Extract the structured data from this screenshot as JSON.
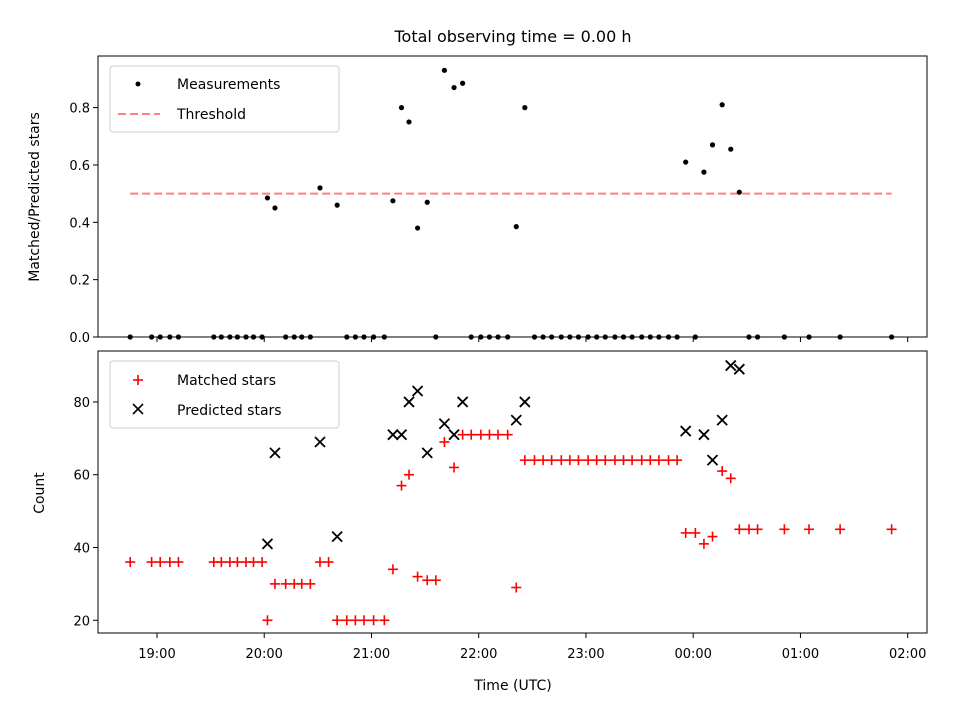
{
  "chart_data": [
    {
      "type": "scatter",
      "title": "Total observing time = 0.00 h",
      "xlabel": "",
      "ylabel": "Matched/Predicted stars",
      "ylim": [
        0,
        0.98
      ],
      "yticks": [
        "0.0",
        "0.2",
        "0.4",
        "0.6",
        "0.8"
      ],
      "legend": {
        "placement": "top-left",
        "entries": [
          "Measurements",
          "Threshold"
        ]
      },
      "threshold": {
        "value": 0.5,
        "x_start": 18.75,
        "x_end": 25.85,
        "color": "#ff7f7f"
      },
      "series": [
        {
          "name": "Measurements",
          "color": "#000000",
          "points": [
            [
              18.75,
              0
            ],
            [
              18.95,
              0
            ],
            [
              19.03,
              0
            ],
            [
              19.12,
              0
            ],
            [
              19.2,
              0
            ],
            [
              19.53,
              0
            ],
            [
              19.6,
              0
            ],
            [
              19.68,
              0
            ],
            [
              19.75,
              0
            ],
            [
              19.83,
              0
            ],
            [
              19.9,
              0
            ],
            [
              19.98,
              0
            ],
            [
              20.03,
              0.485
            ],
            [
              20.1,
              0.45
            ],
            [
              20.2,
              0
            ],
            [
              20.28,
              0
            ],
            [
              20.35,
              0
            ],
            [
              20.43,
              0
            ],
            [
              20.52,
              0.52
            ],
            [
              20.68,
              0.46
            ],
            [
              20.77,
              0
            ],
            [
              20.85,
              0
            ],
            [
              20.93,
              0
            ],
            [
              21.02,
              0
            ],
            [
              21.12,
              0
            ],
            [
              21.2,
              0.475
            ],
            [
              21.28,
              0.8
            ],
            [
              21.35,
              0.75
            ],
            [
              21.43,
              0.38
            ],
            [
              21.52,
              0.47
            ],
            [
              21.6,
              0
            ],
            [
              21.68,
              0.93
            ],
            [
              21.77,
              0.87
            ],
            [
              21.85,
              0.885
            ],
            [
              21.93,
              0
            ],
            [
              22.02,
              0
            ],
            [
              22.1,
              0
            ],
            [
              22.18,
              0
            ],
            [
              22.27,
              0
            ],
            [
              22.35,
              0.385
            ],
            [
              22.43,
              0.8
            ],
            [
              22.52,
              0
            ],
            [
              22.6,
              0
            ],
            [
              22.68,
              0
            ],
            [
              22.77,
              0
            ],
            [
              22.85,
              0
            ],
            [
              22.93,
              0
            ],
            [
              23.02,
              0
            ],
            [
              23.1,
              0
            ],
            [
              23.18,
              0
            ],
            [
              23.27,
              0
            ],
            [
              23.35,
              0
            ],
            [
              23.43,
              0
            ],
            [
              23.52,
              0
            ],
            [
              23.6,
              0
            ],
            [
              23.68,
              0
            ],
            [
              23.77,
              0
            ],
            [
              23.85,
              0
            ],
            [
              23.93,
              0.61
            ],
            [
              24.02,
              0
            ],
            [
              24.1,
              0.575
            ],
            [
              24.18,
              0.67
            ],
            [
              24.27,
              0.81
            ],
            [
              24.35,
              0.655
            ],
            [
              24.43,
              0.505
            ],
            [
              24.52,
              0
            ],
            [
              24.6,
              0
            ],
            [
              24.85,
              0
            ],
            [
              25.08,
              0
            ],
            [
              25.37,
              0
            ],
            [
              25.85,
              0
            ]
          ]
        }
      ]
    },
    {
      "type": "scatter",
      "title": "",
      "xlabel": "Time (UTC)",
      "ylabel": "Count",
      "ylim": [
        16.5,
        94
      ],
      "xlim": [
        18.45,
        26.18
      ],
      "yticks": [
        "20",
        "40",
        "60",
        "80"
      ],
      "xticks": [
        {
          "value": 19,
          "label": "19:00"
        },
        {
          "value": 20,
          "label": "20:00"
        },
        {
          "value": 21,
          "label": "21:00"
        },
        {
          "value": 22,
          "label": "22:00"
        },
        {
          "value": 23,
          "label": "23:00"
        },
        {
          "value": 24,
          "label": "00:00"
        },
        {
          "value": 25,
          "label": "01:00"
        },
        {
          "value": 26,
          "label": "02:00"
        }
      ],
      "legend": {
        "placement": "top-left",
        "entries": [
          "Matched stars",
          "Predicted stars"
        ]
      },
      "series": [
        {
          "name": "Matched stars",
          "color": "#ff0000",
          "marker": "plus",
          "points": [
            [
              18.75,
              36
            ],
            [
              18.95,
              36
            ],
            [
              19.03,
              36
            ],
            [
              19.12,
              36
            ],
            [
              19.2,
              36
            ],
            [
              19.53,
              36
            ],
            [
              19.6,
              36
            ],
            [
              19.68,
              36
            ],
            [
              19.75,
              36
            ],
            [
              19.83,
              36
            ],
            [
              19.9,
              36
            ],
            [
              19.98,
              36
            ],
            [
              20.03,
              20
            ],
            [
              20.1,
              30
            ],
            [
              20.2,
              30
            ],
            [
              20.28,
              30
            ],
            [
              20.35,
              30
            ],
            [
              20.43,
              30
            ],
            [
              20.52,
              36
            ],
            [
              20.6,
              36
            ],
            [
              20.68,
              20
            ],
            [
              20.77,
              20
            ],
            [
              20.85,
              20
            ],
            [
              20.93,
              20
            ],
            [
              21.02,
              20
            ],
            [
              21.12,
              20
            ],
            [
              21.2,
              34
            ],
            [
              21.28,
              57
            ],
            [
              21.35,
              60
            ],
            [
              21.43,
              32
            ],
            [
              21.52,
              31
            ],
            [
              21.6,
              31
            ],
            [
              21.68,
              69
            ],
            [
              21.77,
              62
            ],
            [
              21.85,
              71
            ],
            [
              21.93,
              71
            ],
            [
              22.02,
              71
            ],
            [
              22.1,
              71
            ],
            [
              22.18,
              71
            ],
            [
              22.27,
              71
            ],
            [
              22.35,
              29
            ],
            [
              22.43,
              64
            ],
            [
              22.52,
              64
            ],
            [
              22.6,
              64
            ],
            [
              22.68,
              64
            ],
            [
              22.77,
              64
            ],
            [
              22.85,
              64
            ],
            [
              22.93,
              64
            ],
            [
              23.02,
              64
            ],
            [
              23.1,
              64
            ],
            [
              23.18,
              64
            ],
            [
              23.27,
              64
            ],
            [
              23.35,
              64
            ],
            [
              23.43,
              64
            ],
            [
              23.52,
              64
            ],
            [
              23.6,
              64
            ],
            [
              23.68,
              64
            ],
            [
              23.77,
              64
            ],
            [
              23.85,
              64
            ],
            [
              23.93,
              44
            ],
            [
              24.02,
              44
            ],
            [
              24.1,
              41
            ],
            [
              24.18,
              43
            ],
            [
              24.27,
              61
            ],
            [
              24.35,
              59
            ],
            [
              24.43,
              45
            ],
            [
              24.52,
              45
            ],
            [
              24.6,
              45
            ],
            [
              24.85,
              45
            ],
            [
              25.08,
              45
            ],
            [
              25.37,
              45
            ],
            [
              25.85,
              45
            ]
          ]
        },
        {
          "name": "Predicted stars",
          "color": "#000000",
          "marker": "x",
          "points": [
            [
              20.03,
              41
            ],
            [
              20.1,
              66
            ],
            [
              20.52,
              69
            ],
            [
              20.68,
              43
            ],
            [
              21.2,
              71
            ],
            [
              21.28,
              71
            ],
            [
              21.35,
              80
            ],
            [
              21.43,
              83
            ],
            [
              21.52,
              66
            ],
            [
              21.68,
              74
            ],
            [
              21.77,
              71
            ],
            [
              21.85,
              80
            ],
            [
              22.35,
              75
            ],
            [
              22.43,
              80
            ],
            [
              23.93,
              72
            ],
            [
              24.1,
              71
            ],
            [
              24.18,
              64
            ],
            [
              24.27,
              75
            ],
            [
              24.35,
              90
            ],
            [
              24.43,
              89
            ]
          ]
        }
      ]
    }
  ]
}
